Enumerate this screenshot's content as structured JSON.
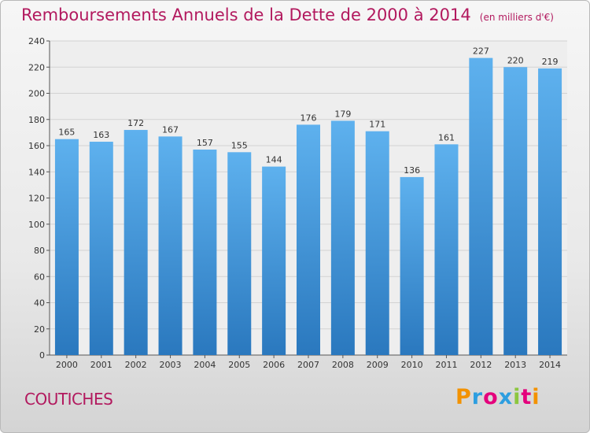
{
  "chart_data": {
    "type": "bar",
    "title": "Remboursements Annuels de la Dette de 2000 à 2014",
    "subtitle": "(en milliers d'€)",
    "categories": [
      "2000",
      "2001",
      "2002",
      "2003",
      "2004",
      "2005",
      "2006",
      "2007",
      "2008",
      "2009",
      "2010",
      "2011",
      "2012",
      "2013",
      "2014"
    ],
    "values": [
      165,
      163,
      172,
      167,
      157,
      155,
      144,
      176,
      179,
      171,
      136,
      161,
      227,
      220,
      219
    ],
    "ylim": [
      0,
      240
    ],
    "yticks": [
      0,
      20,
      40,
      60,
      80,
      100,
      120,
      140,
      160,
      180,
      200,
      220,
      240
    ],
    "grid": true,
    "xlabel": "",
    "ylabel": "",
    "bar_color": "#3d8fd6"
  },
  "footer": {
    "commune": "COUTICHES",
    "logo_text": "Proxiti"
  },
  "colors": {
    "title": "#b2195e",
    "bar_top": "#5eb1ee",
    "bar_bottom": "#2a78be"
  }
}
